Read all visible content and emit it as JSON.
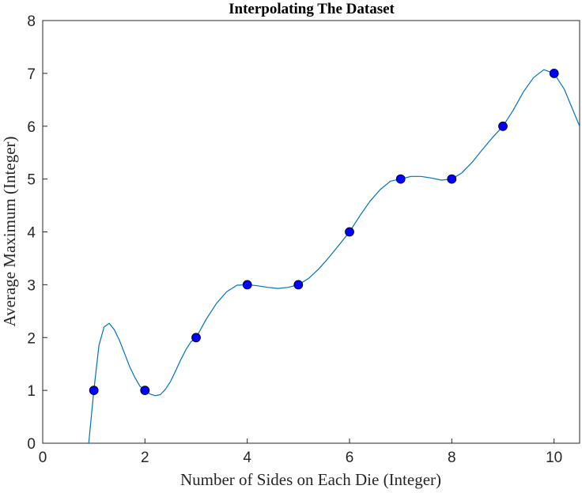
{
  "chart_data": {
    "type": "scatter",
    "title": "Interpolating The Dataset",
    "xlabel": "Number of Sides on Each Die (Integer)",
    "ylabel": "Average Maximum (Integer)",
    "xlim": [
      0,
      10.5
    ],
    "ylim": [
      0,
      8
    ],
    "xticks": [
      "0",
      "2",
      "4",
      "6",
      "8",
      "10"
    ],
    "yticks": [
      "0",
      "1",
      "2",
      "3",
      "4",
      "5",
      "6",
      "7",
      "8"
    ],
    "grid": false,
    "legend": "none",
    "series": [
      {
        "kind": "markers",
        "x": [
          1,
          2,
          3,
          4,
          5,
          6,
          7,
          8,
          9,
          10
        ],
        "y": [
          1,
          1,
          2,
          3,
          3,
          4,
          5,
          5,
          6,
          7
        ],
        "marker_color": "#0000ff"
      },
      {
        "kind": "line",
        "x": [
          0.9,
          1.0,
          1.1,
          1.2,
          1.3,
          1.4,
          1.5,
          1.6,
          1.7,
          1.8,
          1.9,
          2.0,
          2.1,
          2.2,
          2.3,
          2.4,
          2.5,
          2.6,
          2.7,
          2.8,
          2.9,
          3.0,
          3.2,
          3.4,
          3.6,
          3.8,
          4.0,
          4.2,
          4.4,
          4.6,
          4.8,
          5.0,
          5.2,
          5.4,
          5.6,
          5.8,
          6.0,
          6.2,
          6.4,
          6.6,
          6.8,
          7.0,
          7.2,
          7.4,
          7.6,
          7.8,
          8.0,
          8.2,
          8.4,
          8.6,
          8.8,
          9.0,
          9.2,
          9.4,
          9.6,
          9.8,
          10.0,
          10.2,
          10.5
        ],
        "y": [
          0.0,
          1.0,
          1.85,
          2.2,
          2.27,
          2.15,
          1.95,
          1.7,
          1.45,
          1.25,
          1.08,
          1.0,
          0.93,
          0.9,
          0.92,
          1.02,
          1.17,
          1.37,
          1.58,
          1.77,
          1.92,
          2.0,
          2.35,
          2.65,
          2.87,
          2.99,
          3.0,
          2.98,
          2.95,
          2.93,
          2.95,
          3.0,
          3.12,
          3.3,
          3.52,
          3.76,
          4.0,
          4.3,
          4.58,
          4.8,
          4.96,
          5.0,
          5.05,
          5.05,
          5.02,
          4.98,
          5.0,
          5.12,
          5.32,
          5.56,
          5.79,
          6.0,
          6.3,
          6.65,
          6.92,
          7.07,
          7.0,
          6.7,
          6.0
        ],
        "line_color": "#0072bd"
      }
    ]
  }
}
